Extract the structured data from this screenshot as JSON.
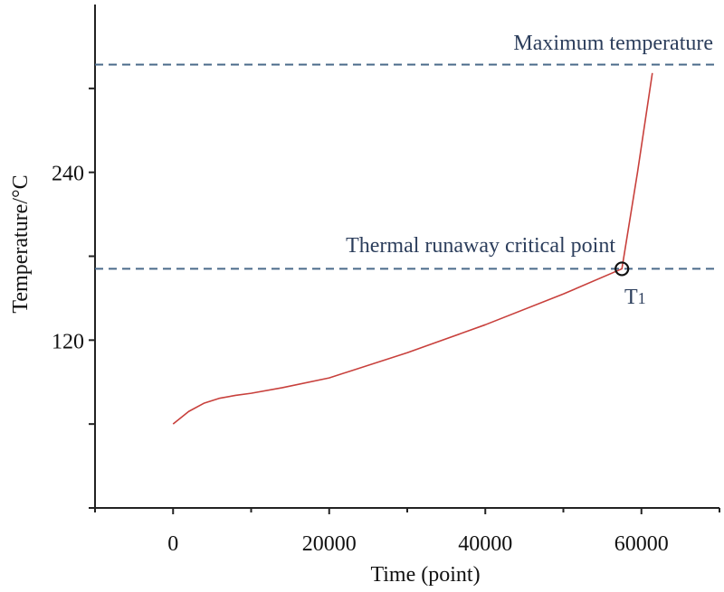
{
  "chart_data": {
    "type": "line",
    "title": "",
    "xlabel": "Time (point)",
    "ylabel": "Temperature/°C",
    "xlim": [
      -10000,
      70000
    ],
    "ylim": [
      0,
      360
    ],
    "x_ticks": [
      0,
      20000,
      40000,
      60000
    ],
    "x_tick_labels": [
      "0",
      "20000",
      "40000",
      "60000"
    ],
    "y_ticks": [
      120,
      240
    ],
    "y_tick_labels": [
      "120",
      "240"
    ],
    "grid": false,
    "series": [
      {
        "color": "#c8403c",
        "x": [
          0,
          2000,
          4000,
          6000,
          8000,
          10000,
          14000,
          20000,
          30000,
          40000,
          50000,
          57500,
          59500,
          61400
        ],
        "y": [
          60,
          69,
          75,
          78.5,
          80.5,
          82,
          86,
          93,
          111,
          131,
          153,
          171,
          240,
          311
        ]
      }
    ],
    "reference_lines": [
      {
        "label": "Maximum temperature",
        "y": 317,
        "color": "#4a6a8a",
        "style": "dashed"
      },
      {
        "label": "Thermal runaway critical point",
        "y": 171,
        "color": "#4a6a8a",
        "style": "dashed"
      }
    ],
    "annotations": [
      {
        "label": "T",
        "subscript": "1",
        "x": 57500,
        "y": 171,
        "marker": "circle"
      }
    ]
  }
}
